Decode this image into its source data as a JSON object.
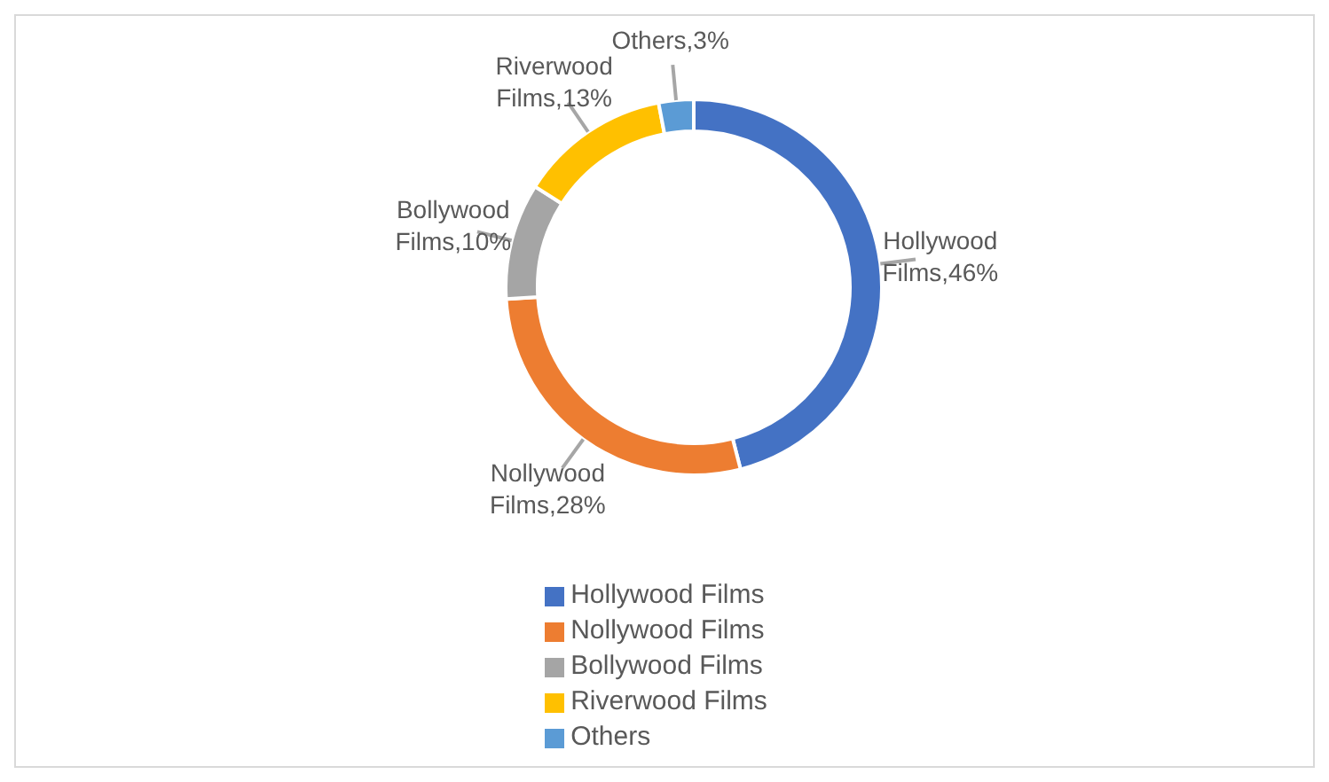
{
  "chart_data": {
    "type": "donut",
    "categories": [
      "Hollywood Films",
      "Nollywood Films",
      "Bollywood Films",
      "Riverwood Films",
      "Others"
    ],
    "values": [
      46,
      28,
      10,
      13,
      3
    ],
    "colors": [
      "#4472c4",
      "#ed7d31",
      "#a5a5a5",
      "#ffc000",
      "#5b9bd5"
    ],
    "value_labels": [
      "Hollywood Films,46%",
      "Nollywood Films,28%",
      "Bollywood Films,10%",
      "Riverwood Films,13%",
      "Others,3%"
    ],
    "legend": "bottom"
  }
}
